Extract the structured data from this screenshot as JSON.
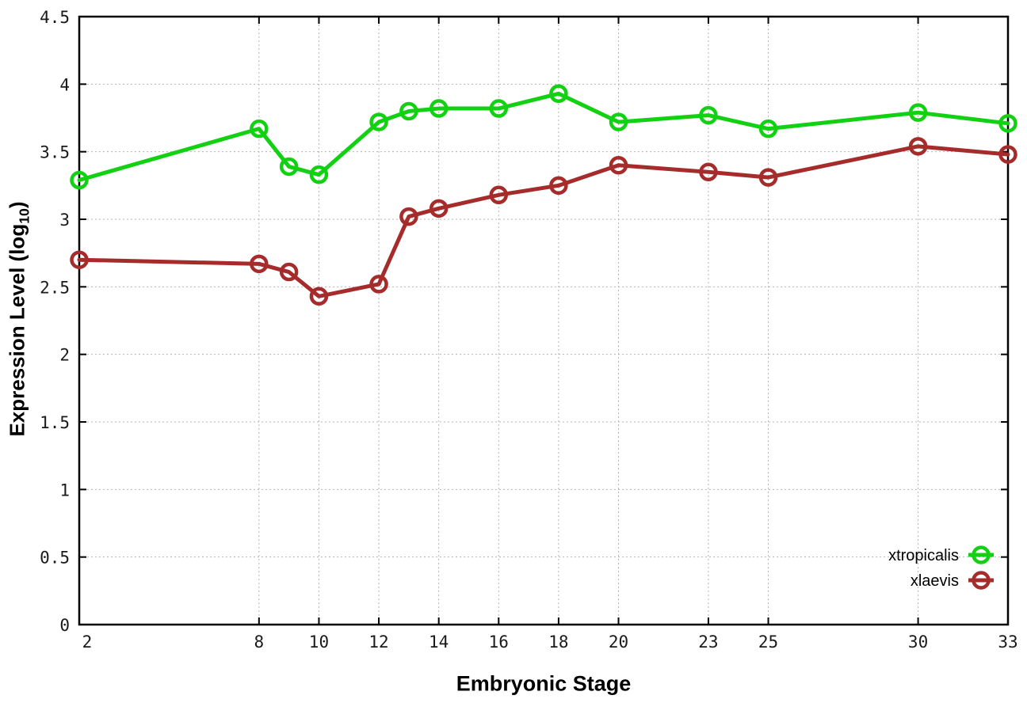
{
  "figure": {
    "background": "#ffffff",
    "border_color": "#000000",
    "grid_color": "#b4b4b4",
    "tick_label_color": "#1a1a1a"
  },
  "chart_data": {
    "type": "line",
    "title": "",
    "xlabel": "Embryonic Stage",
    "ylabel_prefix": "Expression Level (log",
    "ylabel_sub": "10",
    "ylabel_suffix": ")",
    "xlim": [
      2,
      33
    ],
    "ylim": [
      0,
      4.5
    ],
    "grid": true,
    "legend_position": "bottom-right-inside",
    "x_ticks": [
      2,
      8,
      10,
      12,
      14,
      16,
      18,
      20,
      23,
      25,
      30,
      33
    ],
    "x_tick_labels": [
      "2",
      "8",
      "10",
      "12",
      "14",
      "16",
      "18",
      "20",
      "23",
      "25",
      "30",
      "33"
    ],
    "y_ticks": [
      0,
      0.5,
      1,
      1.5,
      2,
      2.5,
      3,
      3.5,
      4,
      4.5
    ],
    "y_tick_labels": [
      "0",
      "0.5",
      "1",
      "1.5",
      "2",
      "2.5",
      "3",
      "3.5",
      "4",
      "4.5"
    ],
    "x": [
      2,
      8,
      9,
      10,
      12,
      13,
      14,
      16,
      18,
      20,
      23,
      25,
      30,
      33
    ],
    "series": [
      {
        "name": "xtropicalis",
        "color": "#12d112",
        "marker": "open-circle",
        "values": [
          3.29,
          3.67,
          3.39,
          3.33,
          3.72,
          3.8,
          3.82,
          3.82,
          3.93,
          3.72,
          3.77,
          3.67,
          3.79,
          3.71
        ]
      },
      {
        "name": "xlaevis",
        "color": "#a62c2c",
        "marker": "open-circle",
        "values": [
          2.7,
          2.67,
          2.61,
          2.43,
          2.52,
          3.02,
          3.08,
          3.18,
          3.25,
          3.4,
          3.35,
          3.31,
          3.54,
          3.48
        ]
      }
    ]
  }
}
